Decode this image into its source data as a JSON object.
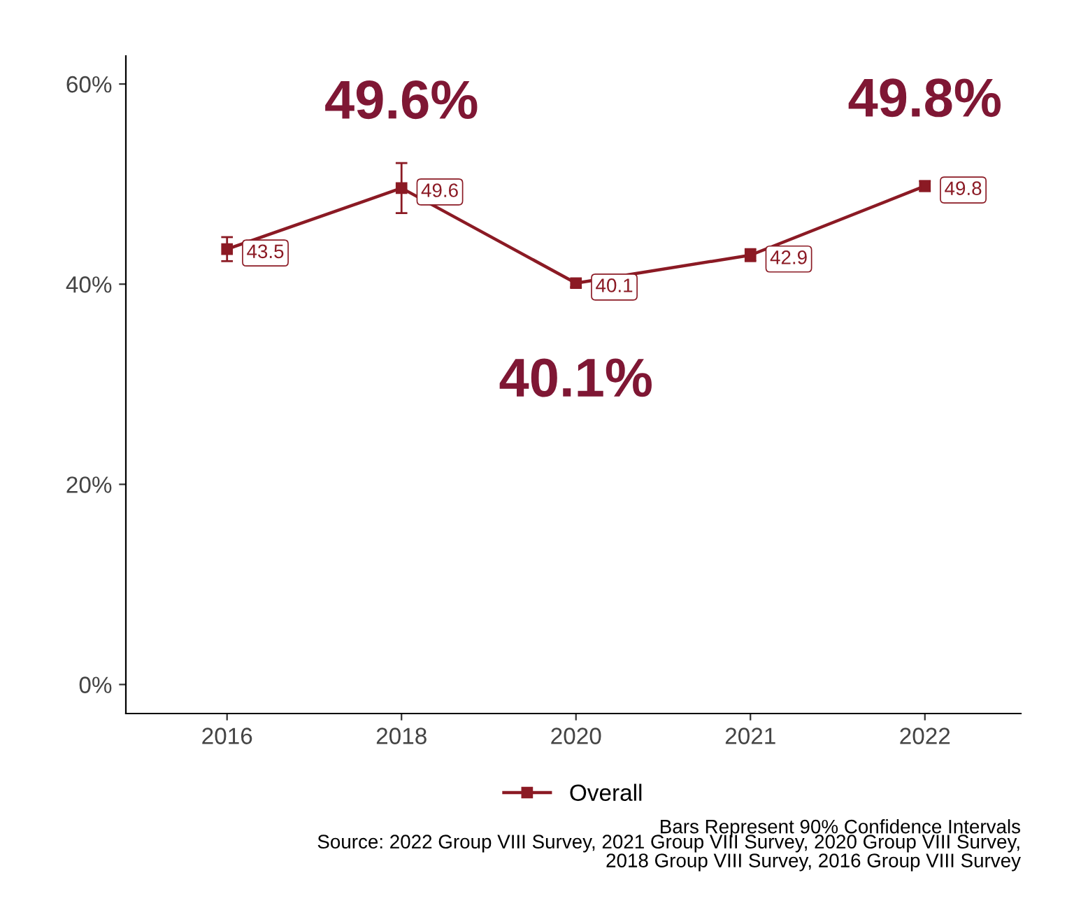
{
  "chart_data": {
    "type": "line",
    "categories": [
      "2016",
      "2018",
      "2020",
      "2021",
      "2022"
    ],
    "series": [
      {
        "name": "Overall",
        "color": "#8b1a24",
        "values": [
          43.5,
          49.6,
          40.1,
          42.9,
          49.8
        ],
        "errors": [
          1.2,
          2.5,
          0.4,
          0.6,
          0.5
        ]
      }
    ],
    "ylim": [
      -2.9,
      62.8
    ],
    "yticks": [
      {
        "value": 0,
        "label": "0%"
      },
      {
        "value": 20,
        "label": "20%"
      },
      {
        "value": 40,
        "label": "40%"
      },
      {
        "value": 60,
        "label": "60%"
      }
    ],
    "data_labels": true,
    "marker": "square",
    "line_style": "solid",
    "grid": false,
    "legend": "bottom",
    "annotations": [
      {
        "text": "49.6%",
        "x": "2018",
        "y": 49.6
      },
      {
        "text": "40.1%",
        "x": "2020",
        "y": 40.1
      },
      {
        "text": "49.8%",
        "x": "2022",
        "y": 49.8
      },
      "Bars Represent 90% Confidence Intervals",
      "Source: 2022 Group VIII Survey, 2021 Group VIII Survey, 2020 Group VIII Survey,\n2018 Group VIII Survey, 2016 Group VIII Survey"
    ]
  }
}
